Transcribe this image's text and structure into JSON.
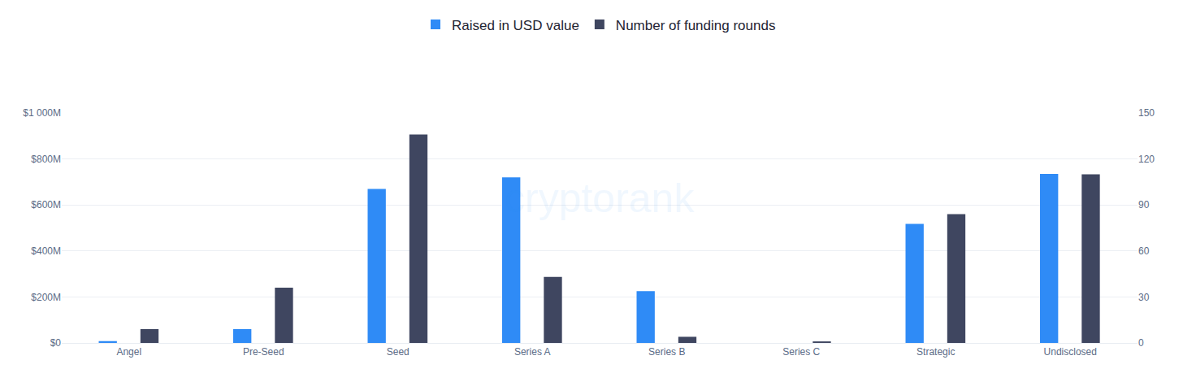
{
  "chart_data": {
    "type": "bar",
    "categories": [
      "Angel",
      "Pre-Seed",
      "Seed",
      "Series A",
      "Series B",
      "Series C",
      "Strategic",
      "Undisclosed"
    ],
    "series": [
      {
        "name": "Raised in USD value",
        "color": "#2f8bf6",
        "values": [
          8,
          60,
          670,
          720,
          225,
          0,
          518,
          735
        ]
      },
      {
        "name": "Number of funding rounds",
        "color": "#3f4660",
        "axis": "y2",
        "values": [
          9,
          36,
          136,
          43,
          4,
          1,
          84,
          110
        ]
      }
    ],
    "ylim": [
      0,
      1000
    ],
    "yticks": [
      {
        "value": 0,
        "label": "$0"
      },
      {
        "value": 200,
        "label": "$200M"
      },
      {
        "value": 400,
        "label": "$400M"
      },
      {
        "value": 600,
        "label": "$600M"
      },
      {
        "value": 800,
        "label": "$800M"
      },
      {
        "value": 1000,
        "label": "$1 000M"
      }
    ],
    "y2lim": [
      0,
      150
    ],
    "y2ticks": [
      0,
      30,
      60,
      90,
      120,
      150
    ],
    "grid": true,
    "legend": "top",
    "annotations": [
      "cryptorank"
    ]
  }
}
